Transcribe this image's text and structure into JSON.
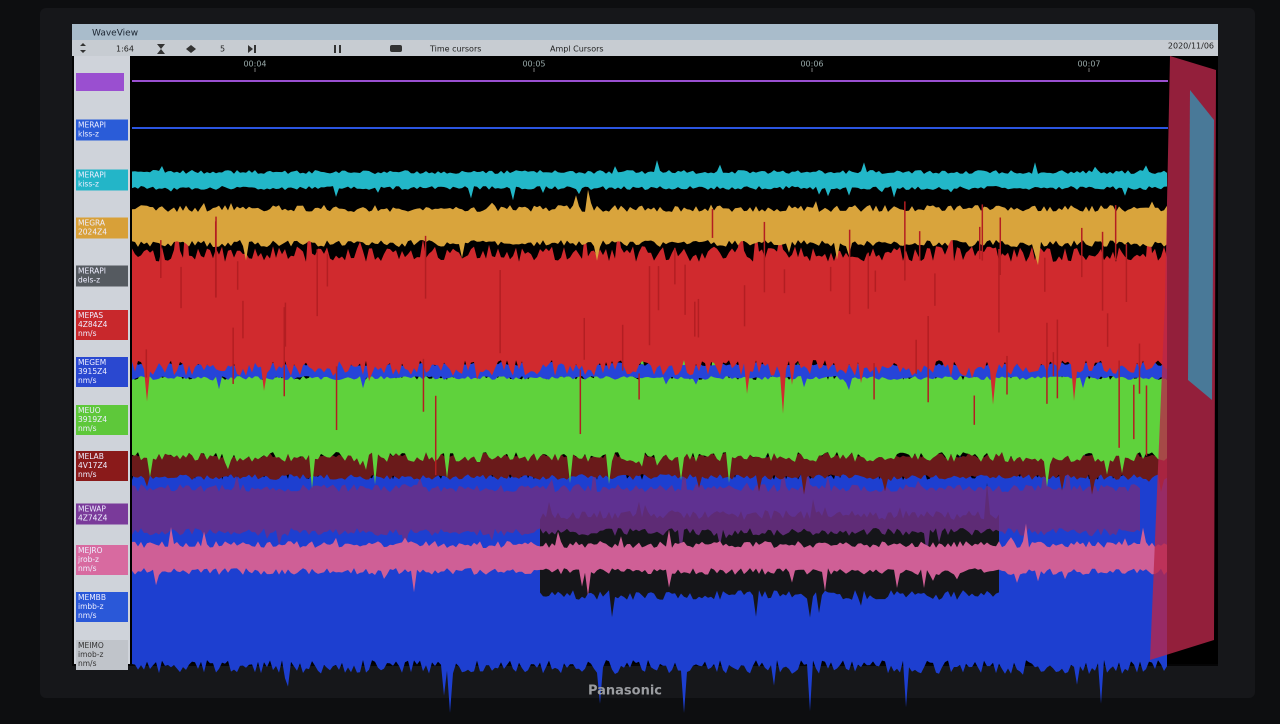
{
  "window": {
    "title": "WaveView",
    "date": "2020/11/06"
  },
  "toolbar": {
    "zoom": "1:64",
    "step": "5",
    "time_cursors": "Time cursors",
    "ampl_cursors": "Ampl Cursors"
  },
  "time_axis": [
    "00:04",
    "00:05",
    "00:06",
    "00:07"
  ],
  "channels": [
    {
      "lines": [
        "MERAPI",
        "klss-z"
      ]
    },
    {
      "lines": [
        "MERAPI",
        "kiss-z"
      ]
    },
    {
      "lines": [
        "MEGRA",
        "2024Z4"
      ]
    },
    {
      "lines": [
        "MERAPI",
        "dels-z"
      ]
    },
    {
      "lines": [
        "MEPAS",
        "4Z84Z4",
        "nm/s"
      ]
    },
    {
      "lines": [
        "MEGEM",
        "3915Z4",
        "nm/s"
      ]
    },
    {
      "lines": [
        "MEUO",
        "3919Z4",
        "nm/s"
      ]
    },
    {
      "lines": [
        "MELAB",
        "4V17Z4",
        "nm/s"
      ]
    },
    {
      "lines": [
        "MEWAP",
        "4Z74Z4"
      ]
    },
    {
      "lines": [
        "MEJRO",
        "jrob-z",
        "nm/s"
      ]
    },
    {
      "lines": [
        "MEMBB",
        "imbb-z",
        "nm/s"
      ]
    },
    {
      "lines": [
        "MEIMO",
        "imob-z",
        "nm/s"
      ]
    }
  ],
  "brand": "Panasonic"
}
